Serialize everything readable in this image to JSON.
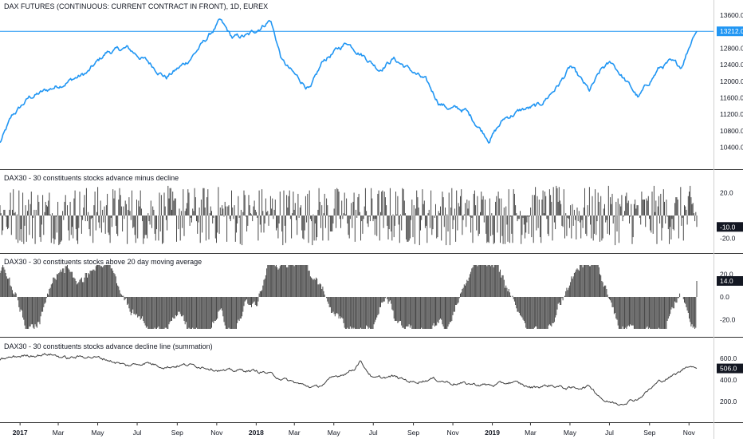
{
  "colors": {
    "price_line": "#2196f3",
    "last_price_line": "#2196f3",
    "histogram": "#4a4a4a",
    "breadth_line": "#3c3c3c",
    "pane_separator": "#2f2f2f",
    "badge_dark": "#131722",
    "background": "#ffffff"
  },
  "chart_data": [
    {
      "type": "line",
      "title": "DAX FUTURES (CONTINUOUS: CURRENT CONTRACT IN FRONT), 1D, EUREX",
      "ylim": [
        10100,
        13700
      ],
      "y_ticks": [
        "13600.0",
        "13200.0",
        "12800.0",
        "12400.0",
        "12000.0",
        "11600.0",
        "11200.0",
        "10800.0",
        "10400.0"
      ],
      "y_tick_values": [
        13600,
        13200,
        12800,
        12400,
        12000,
        11600,
        11200,
        10800,
        10400
      ],
      "last_value_label": "13212.0",
      "last_value": 13212,
      "x": [
        "2016-12-01",
        "2016-12-20",
        "2017-01-15",
        "2017-02-15",
        "2017-03-15",
        "2017-04-15",
        "2017-05-15",
        "2017-06-15",
        "2017-07-15",
        "2017-08-15",
        "2017-09-15",
        "2017-10-15",
        "2017-11-06",
        "2017-11-25",
        "2017-12-20",
        "2018-01-23",
        "2018-02-10",
        "2018-03-01",
        "2018-03-26",
        "2018-04-15",
        "2018-05-22",
        "2018-06-15",
        "2018-07-10",
        "2018-08-01",
        "2018-08-25",
        "2018-09-20",
        "2018-10-10",
        "2018-10-26",
        "2018-11-20",
        "2018-12-27",
        "2019-01-20",
        "2019-02-15",
        "2019-03-15",
        "2019-04-15",
        "2019-05-02",
        "2019-05-31",
        "2019-06-20",
        "2019-07-05",
        "2019-08-15",
        "2019-09-15",
        "2019-10-01",
        "2019-10-20",
        "2019-11-05",
        "2019-11-13"
      ],
      "series": [
        {
          "values": [
            10500,
            11150,
            11600,
            11800,
            12000,
            12200,
            12700,
            12800,
            12500,
            12100,
            12450,
            13000,
            13450,
            13050,
            13100,
            13500,
            12500,
            12150,
            11800,
            12500,
            12950,
            12650,
            12300,
            12550,
            12300,
            12000,
            11500,
            11350,
            11300,
            10600,
            11100,
            11300,
            11400,
            11950,
            12350,
            11750,
            12300,
            12450,
            11600,
            12300,
            12450,
            12350,
            13000,
            13212
          ]
        }
      ],
      "xlabel": "",
      "ylabel": ""
    },
    {
      "type": "bar",
      "title": "DAX30 - 30 constituents stocks advance minus decline",
      "ylim": [
        -28,
        28
      ],
      "y_ticks": [
        "20.0",
        "-20.0"
      ],
      "y_tick_values": [
        20,
        -20
      ],
      "last_value_label": "-10.0",
      "last_value": -10,
      "xlabel": "",
      "ylabel": ""
    },
    {
      "type": "bar",
      "title": "DAX30 - 30 constituents stocks above 20 day moving average",
      "ylim": [
        -28,
        28
      ],
      "y_ticks": [
        "20.0",
        "0.0",
        "-20.0"
      ],
      "y_tick_values": [
        20,
        0,
        -20
      ],
      "last_value_label": "14.0",
      "last_value": 14,
      "xlabel": "",
      "ylabel": ""
    },
    {
      "type": "line",
      "title": "DAX30 - 30 constituents stocks advance decline line (summation)",
      "ylim": [
        60,
        680
      ],
      "y_ticks": [
        "600.0",
        "400.0",
        "200.0"
      ],
      "y_tick_values": [
        600,
        400,
        200
      ],
      "last_value_label": "506.0",
      "last_value": 506,
      "x": [
        "2016-12-01",
        "2017-01-01",
        "2017-02-15",
        "2017-03-15",
        "2017-04-15",
        "2017-05-15",
        "2017-06-15",
        "2017-07-15",
        "2017-08-15",
        "2017-09-15",
        "2017-10-15",
        "2017-11-15",
        "2017-12-15",
        "2018-01-15",
        "2018-02-15",
        "2018-03-15",
        "2018-04-05",
        "2018-05-01",
        "2018-06-01",
        "2018-06-10",
        "2018-07-01",
        "2018-08-01",
        "2018-09-01",
        "2018-10-01",
        "2018-11-01",
        "2018-12-01",
        "2019-01-01",
        "2019-02-01",
        "2019-03-01",
        "2019-04-01",
        "2019-05-01",
        "2019-06-01",
        "2019-06-25",
        "2019-07-15",
        "2019-08-15",
        "2019-09-15",
        "2019-10-15",
        "2019-11-01",
        "2019-11-13"
      ],
      "series": [
        {
          "values": [
            590,
            620,
            640,
            600,
            620,
            590,
            530,
            560,
            520,
            540,
            520,
            480,
            490,
            470,
            400,
            350,
            330,
            420,
            500,
            580,
            410,
            430,
            380,
            410,
            370,
            360,
            350,
            380,
            330,
            350,
            320,
            340,
            200,
            180,
            230,
            380,
            460,
            540,
            506
          ]
        }
      ],
      "xlabel": "",
      "ylabel": ""
    }
  ],
  "x_axis": {
    "labels": [
      {
        "text": "2017",
        "date": "2017-01-01",
        "bold": true
      },
      {
        "text": "Mar",
        "date": "2017-03-01"
      },
      {
        "text": "May",
        "date": "2017-05-01"
      },
      {
        "text": "Jul",
        "date": "2017-07-01"
      },
      {
        "text": "Sep",
        "date": "2017-09-01"
      },
      {
        "text": "Nov",
        "date": "2017-11-01"
      },
      {
        "text": "2018",
        "date": "2018-01-01",
        "bold": true
      },
      {
        "text": "Mar",
        "date": "2018-03-01"
      },
      {
        "text": "May",
        "date": "2018-05-01"
      },
      {
        "text": "Jul",
        "date": "2018-07-01"
      },
      {
        "text": "Sep",
        "date": "2018-09-01"
      },
      {
        "text": "Nov",
        "date": "2018-11-01"
      },
      {
        "text": "2019",
        "date": "2019-01-01",
        "bold": true
      },
      {
        "text": "Mar",
        "date": "2019-03-01"
      },
      {
        "text": "May",
        "date": "2019-05-01"
      },
      {
        "text": "Jul",
        "date": "2019-07-01"
      },
      {
        "text": "Sep",
        "date": "2019-09-01"
      },
      {
        "text": "Nov",
        "date": "2019-11-01"
      }
    ]
  }
}
